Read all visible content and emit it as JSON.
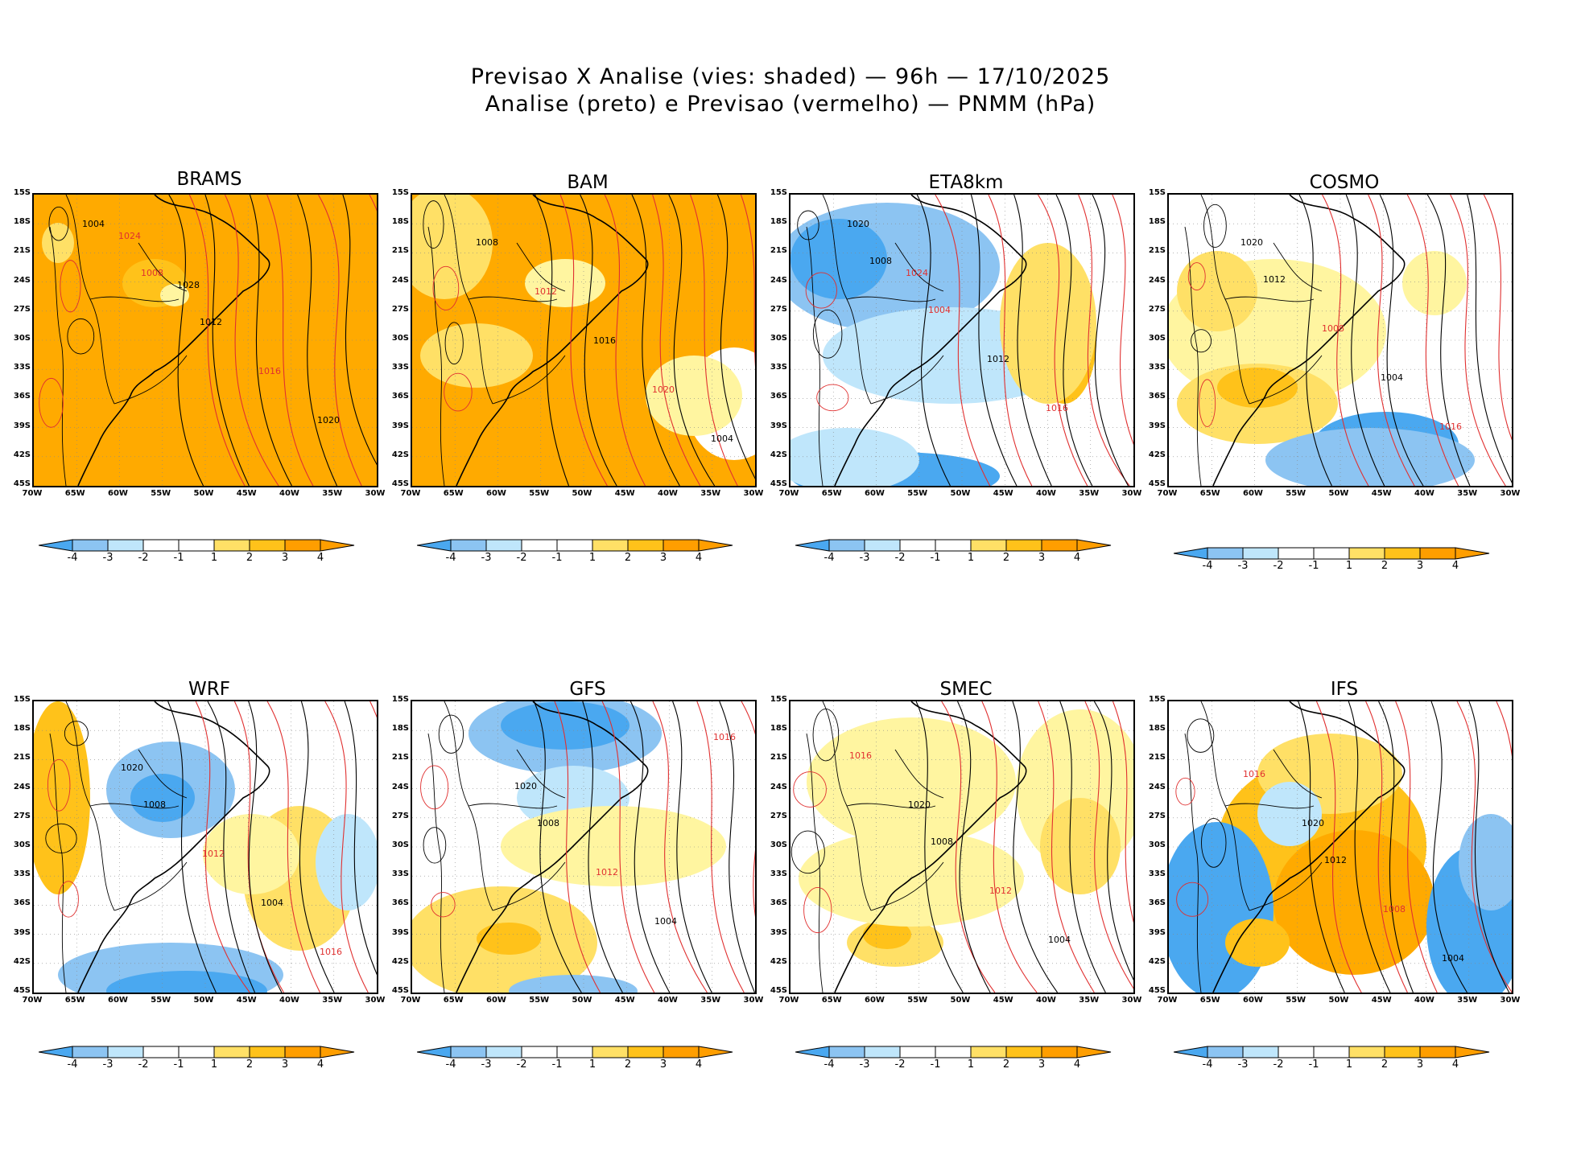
{
  "title": {
    "line1": "Previsao X Analise (vies: shaded) — 96h — 17/10/2025",
    "line2": "Analise (preto) e Previsao (vermelho) — PNMM (hPa)"
  },
  "axes": {
    "lat_labels": [
      "15S",
      "18S",
      "21S",
      "24S",
      "27S",
      "30S",
      "33S",
      "36S",
      "39S",
      "42S",
      "45S"
    ],
    "lon_labels": [
      "70W",
      "65W",
      "60W",
      "55W",
      "50W",
      "45W",
      "40W",
      "35W",
      "30W"
    ]
  },
  "colorbar": {
    "labels": [
      "-4",
      "-3",
      "-2",
      "-1",
      "1",
      "2",
      "3",
      "4"
    ],
    "colors": [
      "#4aa8f0",
      "#8cc4f2",
      "#bfe6fb",
      "#ffffff",
      "#fff5a0",
      "#ffe066",
      "#ffc21a",
      "#ff9e00"
    ]
  },
  "colors": {
    "analysis_line": "#000000",
    "forecast_line": "#e03030",
    "positive_bias": "#ffaa00",
    "negative_bias": "#4aa8f0"
  },
  "panels": [
    {
      "name": "BRAMS",
      "isobars": [
        "1004",
        "1008",
        "1012",
        "1016",
        "1020",
        "1024",
        "1028"
      ]
    },
    {
      "name": "BAM",
      "isobars": [
        "1008",
        "1012",
        "1016",
        "1020",
        "1004"
      ]
    },
    {
      "name": "ETA8km",
      "isobars": [
        "1008",
        "1004",
        "1012",
        "1016",
        "1020",
        "1024"
      ]
    },
    {
      "name": "COSMO",
      "isobars": [
        "1012",
        "1008",
        "1004",
        "1016",
        "1020"
      ]
    },
    {
      "name": "WRF",
      "isobars": [
        "1008",
        "1012",
        "1004",
        "1016",
        "1020"
      ]
    },
    {
      "name": "GFS",
      "isobars": [
        "1008",
        "1012",
        "1004",
        "1016",
        "1020"
      ]
    },
    {
      "name": "SMEC",
      "isobars": [
        "1008",
        "1012",
        "1004",
        "1016",
        "1020"
      ]
    },
    {
      "name": "IFS",
      "isobars": [
        "1012",
        "1008",
        "1004",
        "1016",
        "1020"
      ]
    }
  ]
}
